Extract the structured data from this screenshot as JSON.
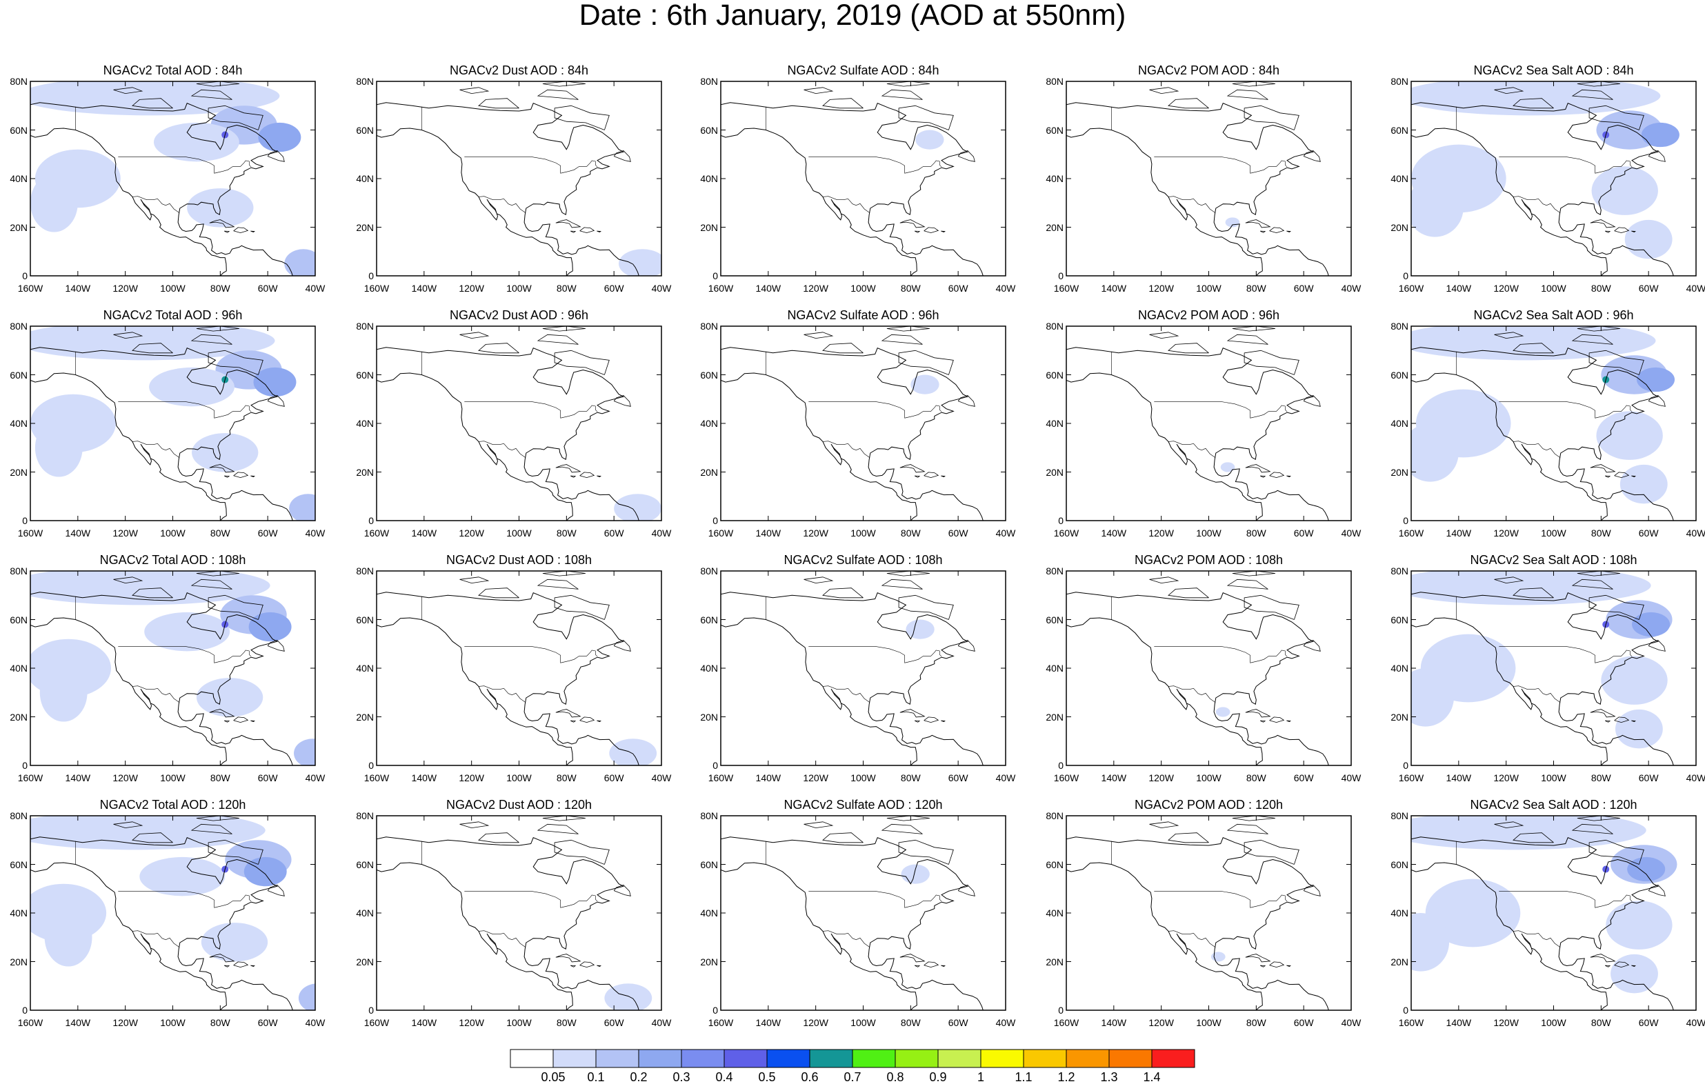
{
  "title": "Date : 6th January, 2019 (AOD at 550nm)",
  "panel_titles": [
    [
      "NGACv2 Total AOD : 84h",
      "NGACv2 Dust AOD : 84h",
      "NGACv2 Sulfate AOD : 84h",
      "NGACv2 POM AOD : 84h",
      "NGACv2 Sea Salt AOD : 84h"
    ],
    [
      "NGACv2 Total AOD : 96h",
      "NGACv2 Dust AOD : 96h",
      "NGACv2 Sulfate AOD : 96h",
      "NGACv2 POM AOD : 96h",
      "NGACv2 Sea Salt AOD : 96h"
    ],
    [
      "NGACv2 Total AOD : 108h",
      "NGACv2 Dust AOD : 108h",
      "NGACv2 Sulfate AOD : 108h",
      "NGACv2 POM AOD : 108h",
      "NGACv2 Sea Salt AOD : 108h"
    ],
    [
      "NGACv2 Total AOD : 120h",
      "NGACv2 Dust AOD : 120h",
      "NGACv2 Sulfate AOD : 120h",
      "NGACv2 POM AOD : 120h",
      "NGACv2 Sea Salt  AOD : 120h"
    ]
  ],
  "lat_labels": [
    "80N",
    "60N",
    "40N",
    "20N",
    "0"
  ],
  "lon_labels": [
    "160W",
    "140W",
    "120W",
    "100W",
    "80W",
    "60W",
    "40W"
  ],
  "colorbar": {
    "labels": [
      "0.05",
      "0.1",
      "0.2",
      "0.3",
      "0.4",
      "0.5",
      "0.6",
      "0.7",
      "0.8",
      "0.9",
      "1",
      "1.1",
      "1.2",
      "1.3",
      "1.4"
    ],
    "colors": [
      "#ffffff",
      "#d2dcfa",
      "#b3c3f5",
      "#8ea8f0",
      "#7a8df0",
      "#5f60e8",
      "#0a50f0",
      "#149696",
      "#50f014",
      "#96f014",
      "#c8f050",
      "#fafa00",
      "#fac800",
      "#fa9600",
      "#fa7800",
      "#fa1e1e"
    ]
  },
  "levels": {
    "none": "#ffffff",
    "low": "#d2dcfa",
    "mid": "#b3c3f5",
    "high": "#8ea8f0",
    "peak": "#5f60e8",
    "spot": "#149696"
  }
}
